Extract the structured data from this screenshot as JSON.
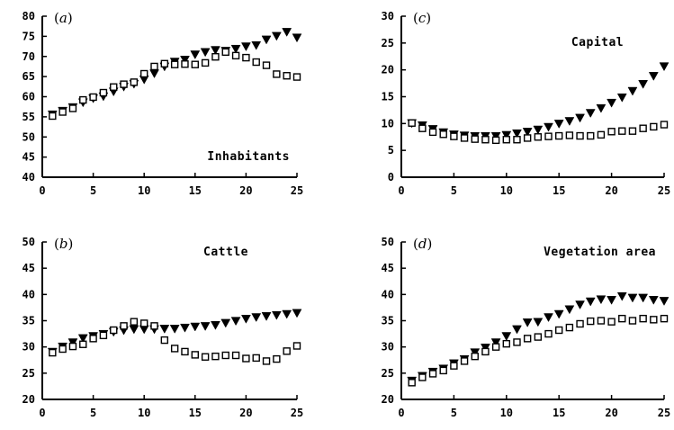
{
  "chart_data": [
    {
      "type": "scatter",
      "panel": "(a)",
      "letter": "a",
      "title": "Inhabitants",
      "xlim": [
        0,
        25
      ],
      "ylim": [
        40,
        80
      ],
      "xticks": [
        "0",
        "5",
        "10",
        "15",
        "20",
        "25"
      ],
      "yticks": [
        "40",
        "45",
        "50",
        "55",
        "60",
        "65",
        "70",
        "75",
        "80"
      ],
      "x": [
        1,
        2,
        3,
        4,
        5,
        6,
        7,
        8,
        9,
        10,
        11,
        12,
        13,
        14,
        15,
        16,
        17,
        18,
        19,
        20,
        21,
        22,
        23,
        24,
        25
      ],
      "series": [
        {
          "marker": "filled-triangle-down",
          "values": [
            55.5,
            56.4,
            57.3,
            58.5,
            59.5,
            60.0,
            61.2,
            62.4,
            63.1,
            64.2,
            65.7,
            67.4,
            68.6,
            69.1,
            70.4,
            71.0,
            71.5,
            71.3,
            71.8,
            72.4,
            72.7,
            74.1,
            75.0,
            76.0,
            74.6
          ]
        },
        {
          "marker": "open-square",
          "values": [
            55.2,
            56.2,
            57.1,
            59.2,
            59.9,
            61.0,
            62.4,
            63.1,
            63.6,
            65.7,
            67.5,
            68.2,
            68.0,
            68.1,
            68.0,
            68.4,
            69.9,
            71.1,
            70.2,
            69.7,
            68.6,
            67.8,
            65.6,
            65.2,
            64.9
          ]
        }
      ]
    },
    {
      "type": "scatter",
      "panel": "(c)",
      "letter": "c",
      "title": "Capital",
      "xlim": [
        0,
        25
      ],
      "ylim": [
        0,
        30
      ],
      "xticks": [
        "0",
        "5",
        "10",
        "15",
        "20",
        "25"
      ],
      "yticks": [
        "0",
        "5",
        "10",
        "15",
        "20",
        "25",
        "30"
      ],
      "x": [
        1,
        2,
        3,
        4,
        5,
        6,
        7,
        8,
        9,
        10,
        11,
        12,
        13,
        14,
        15,
        16,
        17,
        18,
        19,
        20,
        21,
        22,
        23,
        24,
        25
      ],
      "series": [
        {
          "marker": "filled-triangle-down",
          "values": [
            10.0,
            9.6,
            8.9,
            8.3,
            7.9,
            7.7,
            7.6,
            7.6,
            7.6,
            7.8,
            8.1,
            8.4,
            8.8,
            9.3,
            9.9,
            10.4,
            11.0,
            11.9,
            12.8,
            13.8,
            14.8,
            16.0,
            17.3,
            18.8,
            20.6
          ]
        },
        {
          "marker": "open-square",
          "values": [
            10.1,
            9.1,
            8.4,
            8.0,
            7.6,
            7.3,
            7.1,
            7.0,
            6.9,
            7.0,
            7.0,
            7.3,
            7.5,
            7.6,
            7.7,
            7.8,
            7.7,
            7.7,
            7.9,
            8.5,
            8.6,
            8.6,
            9.1,
            9.4,
            9.8
          ]
        }
      ]
    },
    {
      "type": "scatter",
      "panel": "(b)",
      "letter": "b",
      "title": "Cattle",
      "xlim": [
        0,
        25
      ],
      "ylim": [
        20,
        50
      ],
      "xticks": [
        "0",
        "5",
        "10",
        "15",
        "20",
        "25"
      ],
      "yticks": [
        "20",
        "25",
        "30",
        "35",
        "40",
        "45",
        "50"
      ],
      "x": [
        1,
        2,
        3,
        4,
        5,
        6,
        7,
        8,
        9,
        10,
        11,
        12,
        13,
        14,
        15,
        16,
        17,
        18,
        19,
        20,
        21,
        22,
        23,
        24,
        25
      ],
      "series": [
        {
          "marker": "filled-triangle-down",
          "values": [
            29.0,
            30.0,
            30.8,
            31.6,
            32.0,
            32.4,
            32.8,
            33.1,
            33.3,
            33.3,
            33.3,
            33.4,
            33.4,
            33.6,
            33.8,
            33.9,
            34.1,
            34.5,
            34.9,
            35.3,
            35.6,
            35.8,
            36.0,
            36.2,
            36.4
          ]
        },
        {
          "marker": "open-square",
          "values": [
            28.9,
            29.6,
            30.1,
            30.5,
            31.6,
            32.2,
            33.2,
            34.0,
            34.8,
            34.5,
            34.0,
            31.3,
            29.7,
            29.1,
            28.5,
            28.1,
            28.2,
            28.4,
            28.4,
            27.8,
            27.9,
            27.3,
            27.7,
            29.2,
            30.2
          ]
        }
      ]
    },
    {
      "type": "scatter",
      "panel": "(d)",
      "letter": "d",
      "title": "Vegetation area",
      "xlim": [
        0,
        25
      ],
      "ylim": [
        20,
        50
      ],
      "xticks": [
        "0",
        "5",
        "10",
        "15",
        "20",
        "25"
      ],
      "yticks": [
        "20",
        "25",
        "30",
        "35",
        "40",
        "45",
        "50"
      ],
      "x": [
        1,
        2,
        3,
        4,
        5,
        6,
        7,
        8,
        9,
        10,
        11,
        12,
        13,
        14,
        15,
        16,
        17,
        18,
        19,
        20,
        21,
        22,
        23,
        24,
        25
      ],
      "series": [
        {
          "marker": "filled-triangle-down",
          "values": [
            23.5,
            24.4,
            25.2,
            25.8,
            26.8,
            27.6,
            28.9,
            29.8,
            30.8,
            32.0,
            33.3,
            34.6,
            34.7,
            35.6,
            36.2,
            37.1,
            38.0,
            38.6,
            39.0,
            38.9,
            39.6,
            39.3,
            39.3,
            38.9,
            38.7
          ]
        },
        {
          "marker": "open-square",
          "values": [
            23.2,
            24.2,
            24.9,
            25.5,
            26.4,
            27.3,
            28.2,
            29.1,
            30.0,
            30.6,
            30.9,
            31.6,
            31.9,
            32.5,
            33.2,
            33.7,
            34.4,
            34.9,
            35.0,
            34.8,
            35.4,
            35.0,
            35.4,
            35.2,
            35.4
          ]
        }
      ]
    }
  ]
}
